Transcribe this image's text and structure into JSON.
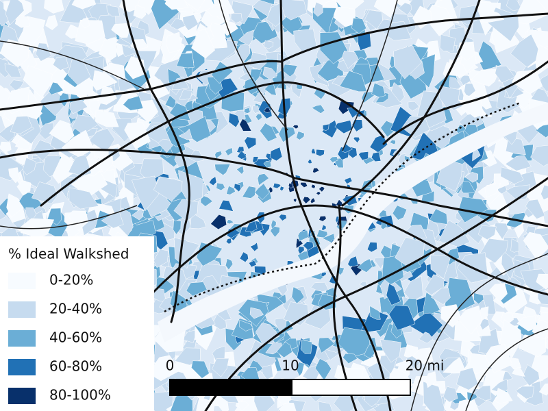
{
  "legend": {
    "title": "% Ideal Walkshed",
    "items": [
      {
        "label": "0-20%",
        "color": "#f7fbff"
      },
      {
        "label": "20-40%",
        "color": "#c6dbef"
      },
      {
        "label": "40-60%",
        "color": "#6baed6"
      },
      {
        "label": "60-80%",
        "color": "#2171b5"
      },
      {
        "label": "80-100%",
        "color": "#08306b"
      }
    ]
  },
  "scale_bar": {
    "labels": [
      "0",
      "10",
      "20 mi"
    ]
  }
}
